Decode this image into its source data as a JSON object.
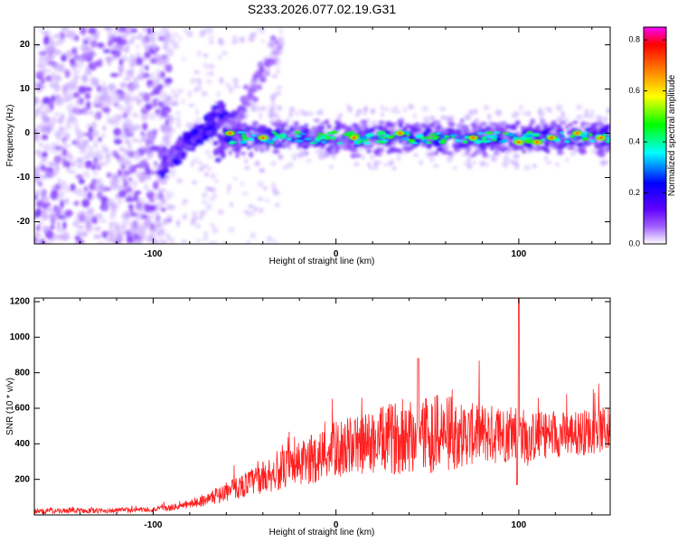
{
  "figure_title": "S233.2026.077.02.19.G31",
  "chart_data": [
    {
      "type": "heatmap",
      "panel": "top",
      "title": "S233.2026.077.02.19.G31",
      "xlabel": "Height of straight line (km)",
      "ylabel": "Frequency (Hz)",
      "xlim": [
        -165,
        150
      ],
      "ylim": [
        -25,
        24
      ],
      "x_ticks": [
        -100,
        0,
        100
      ],
      "x_tick_labels": [
        "-100",
        "0",
        "100"
      ],
      "y_ticks": [
        -20,
        -10,
        0,
        10,
        20
      ],
      "y_tick_labels": [
        "-20",
        "-10",
        "0",
        "10",
        "20"
      ],
      "colorbar": {
        "label": "Normalized spectral amplitude",
        "range": [
          0.0,
          0.85
        ],
        "ticks": [
          0.0,
          0.2,
          0.4,
          0.6,
          0.8
        ],
        "tick_labels": [
          "0.0",
          "0.2",
          "0.4",
          "0.6",
          "0.8"
        ],
        "stops": [
          "#ffffff",
          "#8000ff",
          "#0000ff",
          "#00ffff",
          "#00ff00",
          "#ffff00",
          "#ff8000",
          "#ff0000",
          "#ff00ff"
        ]
      },
      "features": [
        {
          "name": "diffuse noise",
          "x_range": [
            -165,
            -90
          ],
          "y_range": [
            -25,
            24
          ],
          "amplitude": 0.1
        },
        {
          "name": "rising trace",
          "x_start": -95,
          "y_start": -7,
          "x_end": -60,
          "y_end": 5,
          "amplitude": 0.25
        },
        {
          "name": "secondary trace",
          "x_start": -65,
          "y_start": -5,
          "x_end": -30,
          "y_end": 22,
          "amplitude": 0.1
        },
        {
          "name": "main band",
          "x_range": [
            -60,
            150
          ],
          "y_center": -1,
          "half_width": 3,
          "amplitude": 0.3
        },
        {
          "name": "peaks",
          "points": [
            [
              -58,
              0
            ],
            [
              -40,
              -1
            ],
            [
              10,
              -1
            ],
            [
              35,
              0
            ],
            [
              75,
              -1
            ],
            [
              100,
              -2
            ],
            [
              110,
              -2
            ],
            [
              118,
              -1
            ],
            [
              132,
              0
            ],
            [
              145,
              -1
            ]
          ],
          "amplitude": 0.8
        }
      ]
    },
    {
      "type": "line",
      "panel": "bottom",
      "xlabel": "Height of straight line (km)",
      "ylabel": "SNR (10 * v/v)",
      "xlim": [
        -165,
        150
      ],
      "ylim": [
        0,
        1220
      ],
      "x_ticks": [
        -100,
        0,
        100
      ],
      "x_tick_labels": [
        "-100",
        "0",
        "100"
      ],
      "y_ticks": [
        200,
        400,
        600,
        800,
        1000,
        1200
      ],
      "y_tick_labels": [
        "200",
        "400",
        "600",
        "800",
        "1000",
        "1200"
      ],
      "color": "#ff2020",
      "series": [
        {
          "name": "SNR",
          "x": [
            -165,
            -150,
            -140,
            -130,
            -120,
            -110,
            -100,
            -90,
            -80,
            -70,
            -60,
            -50,
            -40,
            -30,
            -20,
            -10,
            0,
            10,
            20,
            30,
            40,
            50,
            60,
            70,
            80,
            90,
            95,
            100,
            105,
            110,
            120,
            130,
            140,
            150
          ],
          "values": [
            20,
            22,
            25,
            22,
            25,
            28,
            30,
            40,
            60,
            90,
            130,
            170,
            210,
            250,
            280,
            330,
            370,
            390,
            410,
            430,
            450,
            460,
            460,
            450,
            460,
            450,
            460,
            480,
            420,
            450,
            450,
            460,
            470,
            480
          ],
          "noise": [
            15,
            15,
            15,
            15,
            15,
            15,
            15,
            18,
            22,
            35,
            55,
            70,
            90,
            110,
            130,
            150,
            160,
            170,
            180,
            200,
            220,
            230,
            220,
            180,
            170,
            170,
            160,
            160,
            150,
            140,
            130,
            130,
            130,
            130
          ]
        }
      ],
      "annotations": [
        {
          "name": "spike",
          "x": 100,
          "value": 1220
        },
        {
          "name": "dip",
          "x": 99,
          "value": 170
        },
        {
          "name": "peak near 45",
          "x": 45,
          "value": 880
        }
      ]
    }
  ]
}
